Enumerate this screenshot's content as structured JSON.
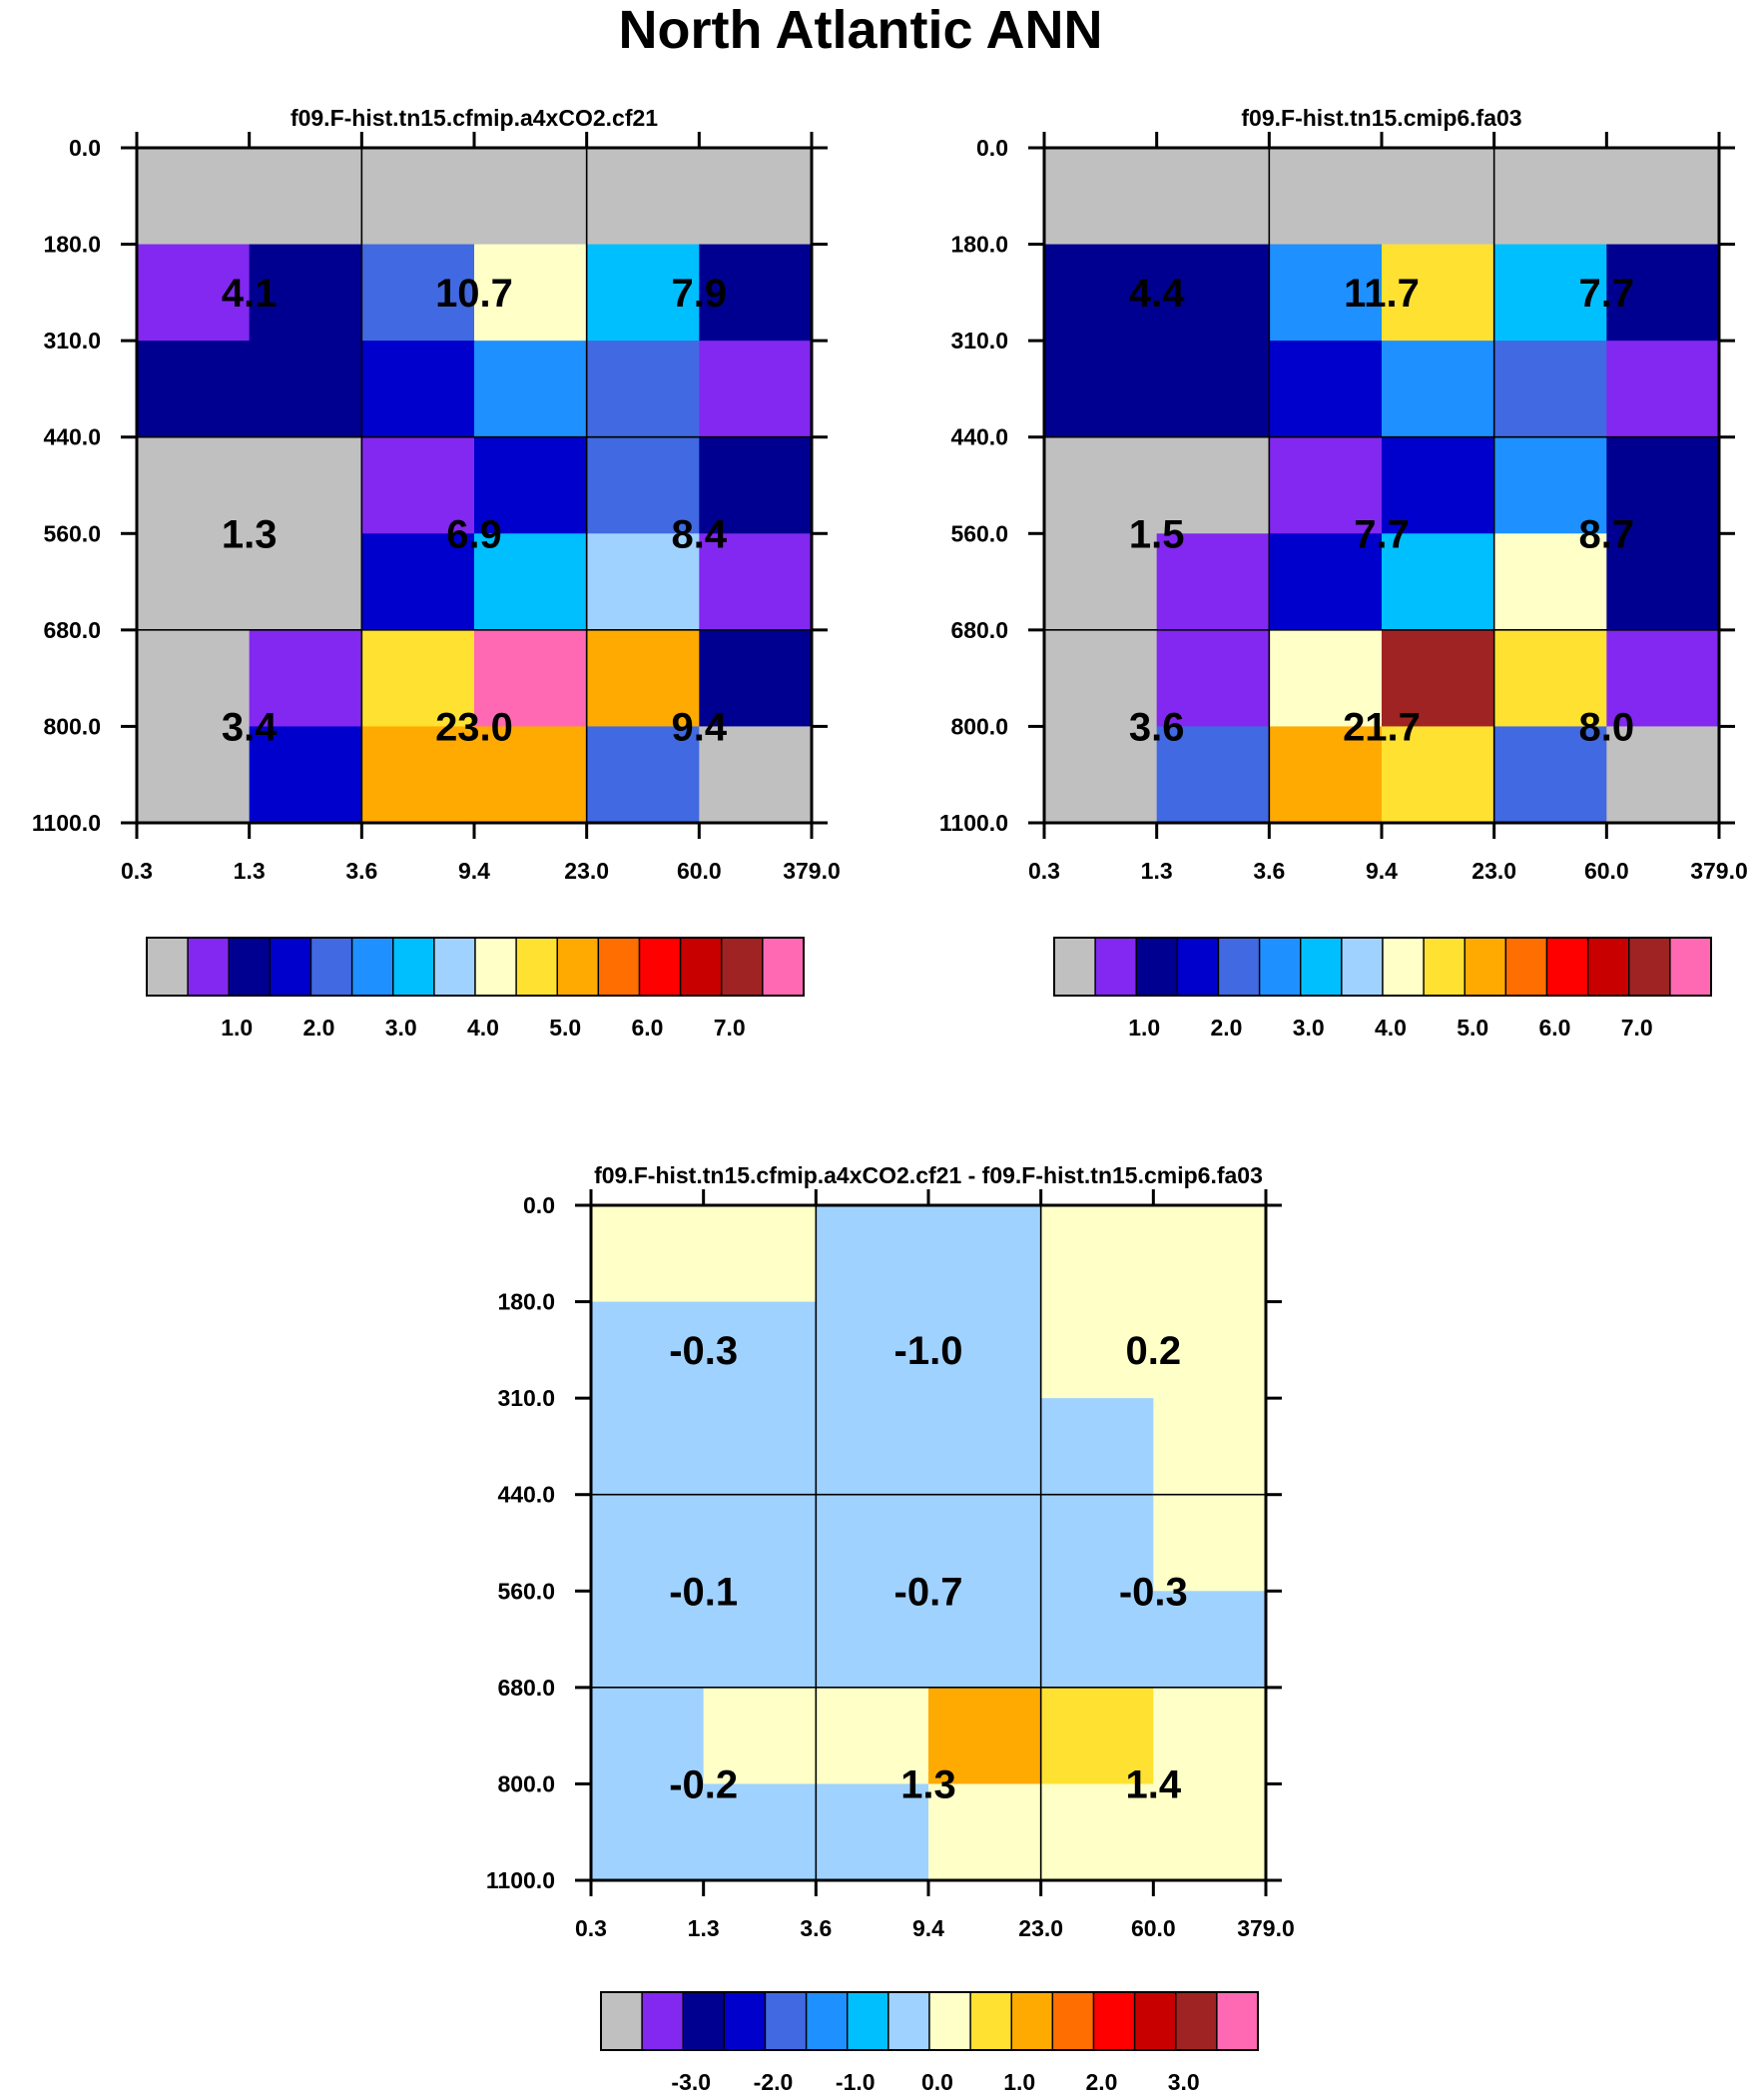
{
  "figure_title": "North Atlantic ANN",
  "x_ticks": [
    "0.3",
    "1.3",
    "3.6",
    "9.4",
    "23.0",
    "60.0",
    "379.0"
  ],
  "y_ticks": [
    "0.0",
    "180.0",
    "310.0",
    "440.0",
    "560.0",
    "680.0",
    "800.0",
    "1100.0"
  ],
  "colorbar_colors": [
    "#c0c0c0",
    "#8228f0",
    "#000090",
    "#0000cd",
    "#4169e1",
    "#1e90ff",
    "#00bfff",
    "#a0d2ff",
    "#ffffc8",
    "#ffe132",
    "#ffaa00",
    "#ff6e00",
    "#ff0000",
    "#c80000",
    "#a02323",
    "#ff69b4"
  ],
  "chart_data": [
    {
      "type": "heatmap",
      "title": "f09.F-hist.tn15.cfmip.a4xCO2.cf21",
      "x_ticks": [
        "0.3",
        "1.3",
        "3.6",
        "9.4",
        "23.0",
        "60.0",
        "379.0"
      ],
      "y_ticks": [
        "0.0",
        "180.0",
        "310.0",
        "440.0",
        "560.0",
        "680.0",
        "800.0",
        "1100.0"
      ],
      "cell_colors": [
        [
          0,
          0,
          0,
          0,
          0,
          0
        ],
        [
          1,
          2,
          4,
          8,
          6,
          2
        ],
        [
          2,
          2,
          3,
          5,
          4,
          1
        ],
        [
          0,
          0,
          1,
          3,
          4,
          2
        ],
        [
          0,
          0,
          3,
          6,
          7,
          1
        ],
        [
          0,
          1,
          9,
          15,
          10,
          2
        ],
        [
          0,
          3,
          10,
          10,
          4,
          0
        ]
      ],
      "box_values": [
        [
          "4.1",
          "10.7",
          "7.9"
        ],
        [
          "1.3",
          "6.9",
          "8.4"
        ],
        [
          "3.4",
          "23.0",
          "9.4"
        ]
      ],
      "colorbar_labels": [
        "1.0",
        "2.0",
        "3.0",
        "4.0",
        "5.0",
        "6.0",
        "7.0"
      ]
    },
    {
      "type": "heatmap",
      "title": "f09.F-hist.tn15.cmip6.fa03",
      "x_ticks": [
        "0.3",
        "1.3",
        "3.6",
        "9.4",
        "23.0",
        "60.0",
        "379.0"
      ],
      "y_ticks": [
        "0.0",
        "180.0",
        "310.0",
        "440.0",
        "560.0",
        "680.0",
        "800.0",
        "1100.0"
      ],
      "cell_colors": [
        [
          0,
          0,
          0,
          0,
          0,
          0
        ],
        [
          2,
          2,
          5,
          9,
          6,
          2
        ],
        [
          2,
          2,
          3,
          5,
          4,
          1
        ],
        [
          0,
          0,
          1,
          3,
          5,
          2
        ],
        [
          0,
          1,
          3,
          6,
          8,
          2
        ],
        [
          0,
          1,
          8,
          14,
          9,
          1
        ],
        [
          0,
          4,
          10,
          9,
          4,
          0
        ]
      ],
      "box_values": [
        [
          "4.4",
          "11.7",
          "7.7"
        ],
        [
          "1.5",
          "7.7",
          "8.7"
        ],
        [
          "3.6",
          "21.7",
          "8.0"
        ]
      ],
      "colorbar_labels": [
        "1.0",
        "2.0",
        "3.0",
        "4.0",
        "5.0",
        "6.0",
        "7.0"
      ]
    },
    {
      "type": "heatmap",
      "title": "f09.F-hist.tn15.cfmip.a4xCO2.cf21 - f09.F-hist.tn15.cmip6.fa03",
      "x_ticks": [
        "0.3",
        "1.3",
        "3.6",
        "9.4",
        "23.0",
        "60.0",
        "379.0"
      ],
      "y_ticks": [
        "0.0",
        "180.0",
        "310.0",
        "440.0",
        "560.0",
        "680.0",
        "800.0",
        "1100.0"
      ],
      "cell_colors": [
        [
          8,
          8,
          7,
          7,
          8,
          8
        ],
        [
          7,
          7,
          7,
          7,
          8,
          8
        ],
        [
          7,
          7,
          7,
          7,
          7,
          8
        ],
        [
          7,
          7,
          7,
          7,
          7,
          8
        ],
        [
          7,
          7,
          7,
          7,
          7,
          7
        ],
        [
          7,
          8,
          8,
          10,
          9,
          8
        ],
        [
          7,
          7,
          7,
          8,
          8,
          8
        ]
      ],
      "box_values": [
        [
          "-0.3",
          "-1.0",
          "0.2"
        ],
        [
          "-0.1",
          "-0.7",
          "-0.3"
        ],
        [
          "-0.2",
          "1.3",
          "1.4"
        ]
      ],
      "colorbar_labels": [
        "-3.0",
        "-2.0",
        "-1.0",
        "0.0",
        "1.0",
        "2.0",
        "3.0"
      ]
    }
  ]
}
